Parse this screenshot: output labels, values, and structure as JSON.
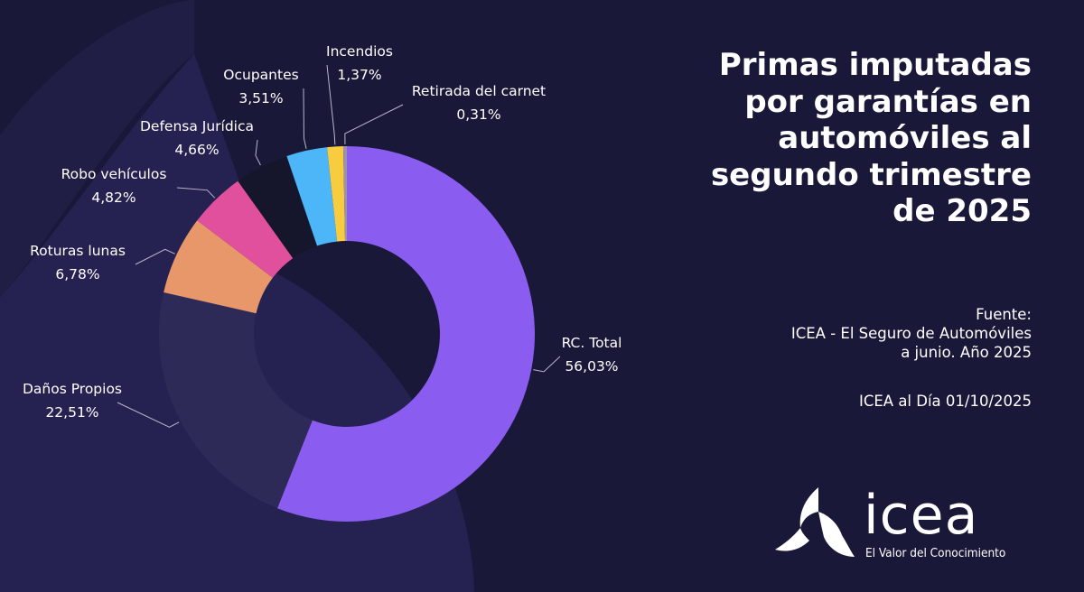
{
  "title": "Primas imputadas\npor garantías en\nautomóviles al\nsegundo trimestre\nde 2025",
  "source": {
    "label": "Fuente:",
    "text": "ICEA - El Seguro de Automóviles\na junio. Año 2025"
  },
  "publication": "ICEA al Día 01/10/2025",
  "logo": {
    "name": "icea",
    "tagline": "El Valor del Conocimiento"
  },
  "colors": {
    "background": "#1a1839",
    "rc_total": "#8b5cf0",
    "danos_propios": "#2d2a58",
    "roturas_lunas": "#e8976a",
    "robo_vehiculos": "#e0509c",
    "defensa_juridica": "#15162b",
    "ocupantes": "#4db6f8",
    "incendios": "#f7cc3f",
    "retirada_carnet": "#9c93ab"
  },
  "chart_data": {
    "type": "pie",
    "variant": "donut",
    "title": "Primas imputadas por garantías en automóviles al segundo trimestre de 2025",
    "unit": "%",
    "slices": [
      {
        "label": "RC. Total",
        "value": 56.03,
        "display": "56,03%",
        "color": "#8b5cf0"
      },
      {
        "label": "Daños Propios",
        "value": 22.51,
        "display": "22,51%",
        "color": "#2d2a58"
      },
      {
        "label": "Roturas lunas",
        "value": 6.78,
        "display": "6,78%",
        "color": "#e8976a"
      },
      {
        "label": "Robo vehículos",
        "value": 4.82,
        "display": "4,82%",
        "color": "#e0509c"
      },
      {
        "label": "Defensa Jurídica",
        "value": 4.66,
        "display": "4,66%",
        "color": "#15162b"
      },
      {
        "label": "Ocupantes",
        "value": 3.51,
        "display": "3,51%",
        "color": "#4db6f8"
      },
      {
        "label": "Incendios",
        "value": 1.37,
        "display": "1,37%",
        "color": "#f7cc3f"
      },
      {
        "label": "Retirada del carnet",
        "value": 0.31,
        "display": "0,31%",
        "color": "#9c93ab"
      }
    ]
  }
}
